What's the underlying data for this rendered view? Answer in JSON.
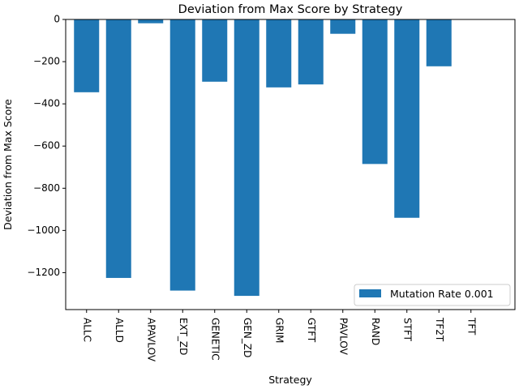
{
  "chart_data": {
    "type": "bar",
    "title": "Deviation from Max Score by Strategy",
    "xlabel": "Strategy",
    "ylabel": "Deviation from Max Score",
    "categories": [
      "ALLC",
      "ALLD",
      "APAVLOV",
      "EXT_ZD",
      "GENETIC",
      "GEN_ZD",
      "GRIM",
      "GTFT",
      "PAVLOV",
      "RAND",
      "STFT",
      "TF2T",
      "TFT"
    ],
    "series": [
      {
        "name": "Mutation Rate 0.001",
        "color": "#1f77b4",
        "values": [
          -345,
          -1225,
          -18,
          -1285,
          -295,
          -1310,
          -322,
          -308,
          -68,
          -685,
          -940,
          -222,
          0
        ]
      }
    ],
    "ylim": [
      -1375,
      0
    ],
    "yticks": [
      0,
      -200,
      -400,
      -600,
      -800,
      -1000,
      -1200
    ],
    "ytick_labels": [
      "0",
      "−200",
      "−400",
      "−600",
      "−800",
      "−1000",
      "−1200"
    ],
    "grid": false,
    "legend_position": "lower-right"
  }
}
